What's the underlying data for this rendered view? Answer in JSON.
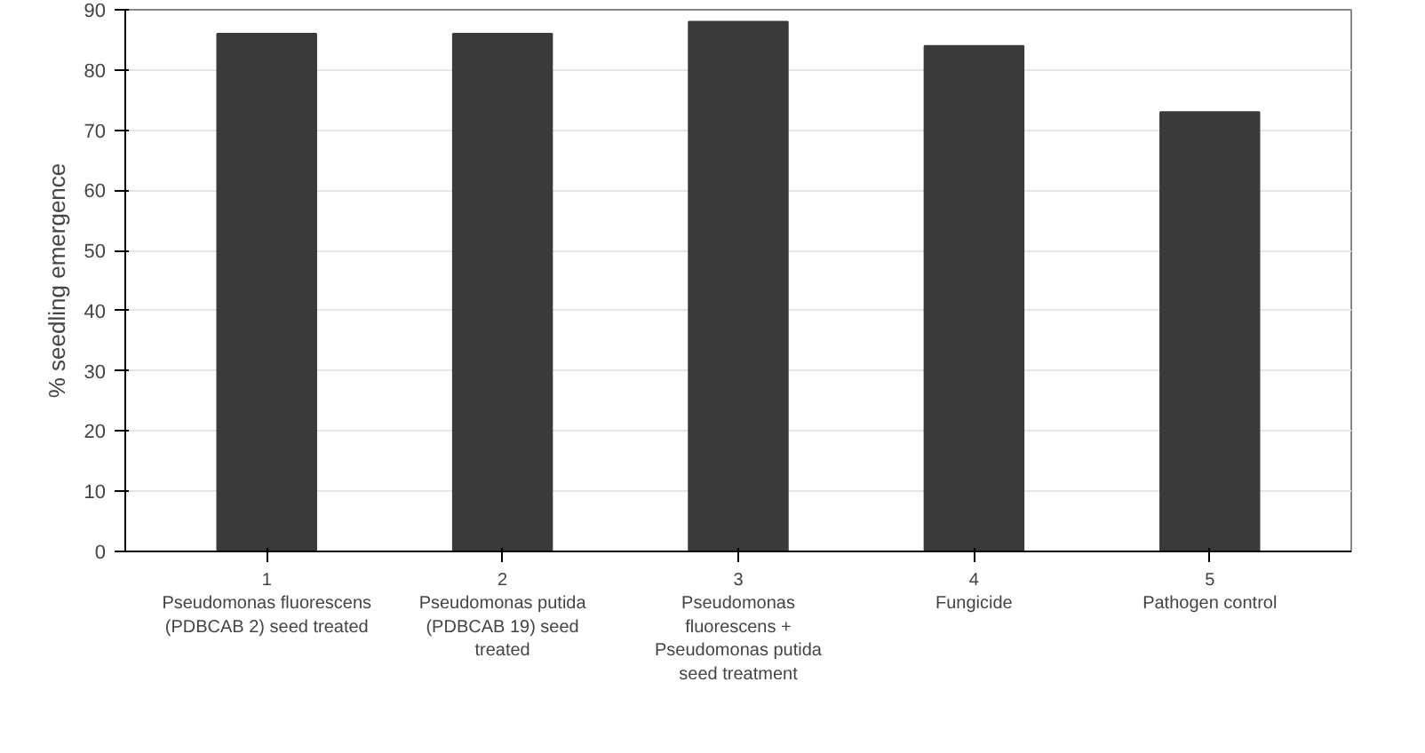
{
  "chart_data": {
    "type": "bar",
    "ylabel": "% seedling emergence",
    "categories": [
      "1\nPseudomonas fluorescens\n(PDBCAB 2) seed treated",
      "2\nPseudomonas putida\n(PDBCAB 19) seed\ntreated",
      "3\nPseudomonas\nfluorescens +\nPseudomonas putida\nseed treatment",
      "4\nFungicide",
      "5\nPathogen control"
    ],
    "values": [
      86,
      86,
      88,
      84,
      73
    ],
    "color": "#3a3a3a",
    "ylim": [
      0,
      90
    ],
    "yticks": [
      0,
      10,
      20,
      30,
      40,
      50,
      60,
      70,
      80,
      90
    ],
    "grid": "y"
  }
}
